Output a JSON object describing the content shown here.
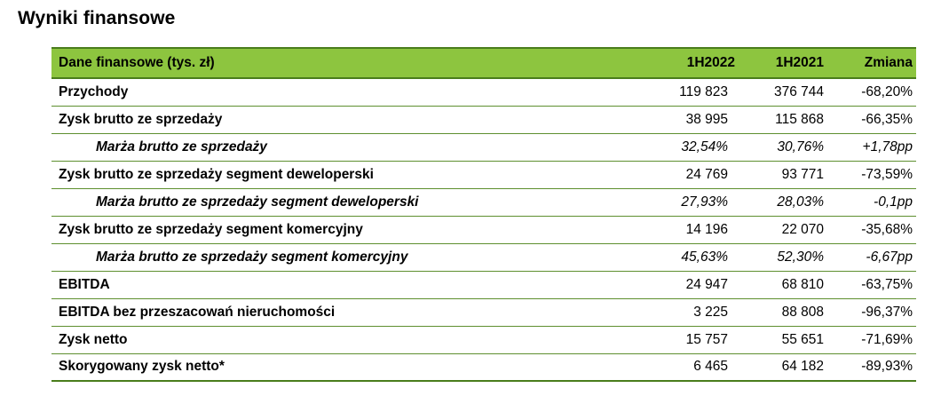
{
  "title": "Wyniki finansowe",
  "table": {
    "headers": [
      "Dane finansowe (tys. zł)",
      "1H2022",
      "1H2021",
      "Zmiana"
    ],
    "rows": [
      {
        "label": "Przychody",
        "v2022": "119 823",
        "v2021": "376 744",
        "change": "-68,20%",
        "sub": false
      },
      {
        "label": "Zysk brutto ze sprzedaży",
        "v2022": "38 995",
        "v2021": "115 868",
        "change": "-66,35%",
        "sub": false
      },
      {
        "label": "Marża brutto ze sprzedaży",
        "v2022": "32,54%",
        "v2021": "30,76%",
        "change": "+1,78pp",
        "sub": true
      },
      {
        "label": "Zysk brutto ze sprzedaży segment deweloperski",
        "v2022": "24 769",
        "v2021": "93 771",
        "change": "-73,59%",
        "sub": false
      },
      {
        "label": "Marża brutto ze sprzedaży segment deweloperski",
        "v2022": "27,93%",
        "v2021": "28,03%",
        "change": "-0,1pp",
        "sub": true
      },
      {
        "label": "Zysk brutto ze sprzedaży segment komercyjny",
        "v2022": "14 196",
        "v2021": "22 070",
        "change": "-35,68%",
        "sub": false
      },
      {
        "label": "Marża brutto ze sprzedaży segment komercyjny",
        "v2022": "45,63%",
        "v2021": "52,30%",
        "change": "-6,67pp",
        "sub": true
      },
      {
        "label": "EBITDA",
        "v2022": "24 947",
        "v2021": "68 810",
        "change": "-63,75%",
        "sub": false
      },
      {
        "label": "EBITDA bez przeszacowań nieruchomości",
        "v2022": "3 225",
        "v2021": "88 808",
        "change": "-96,37%",
        "sub": false
      },
      {
        "label": "Zysk netto",
        "v2022": "15 757",
        "v2021": "55 651",
        "change": "-71,69%",
        "sub": false
      },
      {
        "label": "Skorygowany zysk netto*",
        "v2022": "6 465",
        "v2021": "64 182",
        "change": "-89,93%",
        "sub": false
      }
    ]
  },
  "colors": {
    "header_fill": "#8dc53f",
    "rule": "#4a7d1c"
  }
}
